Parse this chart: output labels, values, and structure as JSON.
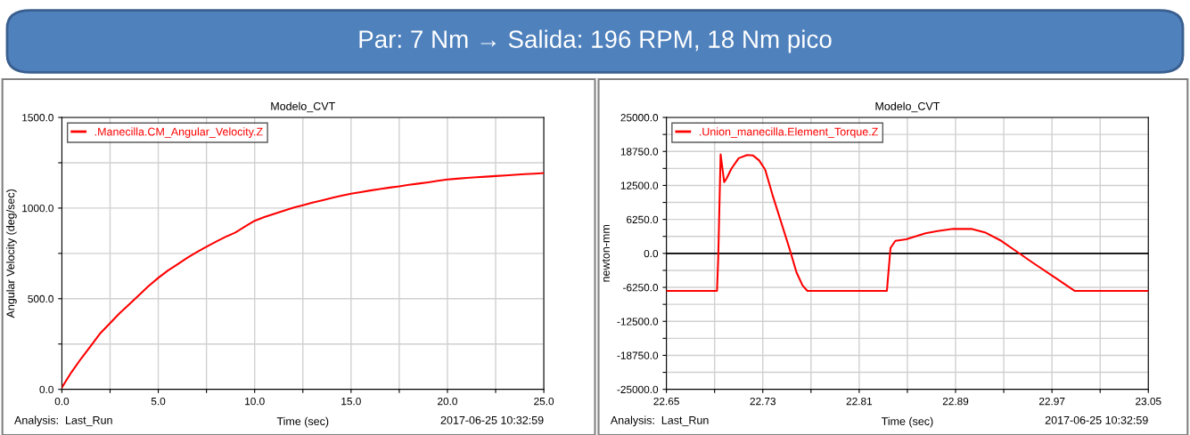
{
  "chart_data": [
    {
      "type": "other",
      "title": "Par: 7 Nm → Salida: 196 RPM, 18 Nm pico"
    },
    {
      "type": "line",
      "title": "Modelo_CVT",
      "xlabel": "Time (sec)",
      "ylabel": "Angular Velocity (deg/sec)",
      "x": [
        0,
        0.5,
        1,
        1.5,
        2,
        2.5,
        3,
        3.5,
        4,
        4.5,
        5,
        5.5,
        6,
        6.5,
        7,
        7.5,
        8,
        8.5,
        9,
        9.5,
        10,
        10.5,
        11,
        11.5,
        12,
        12.5,
        13,
        13.5,
        14,
        14.5,
        15,
        15.5,
        16,
        16.5,
        17,
        17.5,
        18,
        18.5,
        19,
        19.5,
        20,
        20.5,
        21,
        21.5,
        22,
        22.5,
        23,
        23.5,
        24,
        24.5,
        25
      ],
      "series": [
        {
          "name": ".Manecilla.CM_Angular_Velocity.Z",
          "color": "#ff0000",
          "values": [
            10,
            95,
            170,
            240,
            310,
            365,
            420,
            470,
            520,
            570,
            615,
            655,
            690,
            725,
            757,
            787,
            815,
            842,
            865,
            898,
            930,
            950,
            968,
            985,
            1002,
            1016,
            1030,
            1043,
            1056,
            1068,
            1079,
            1088,
            1097,
            1105,
            1113,
            1120,
            1128,
            1135,
            1142,
            1150,
            1158,
            1162,
            1166,
            1170,
            1173,
            1177,
            1180,
            1184,
            1187,
            1190,
            1193
          ]
        }
      ],
      "xlim": [
        0,
        25
      ],
      "xticks": [
        {
          "value": 0,
          "label": "0.0"
        },
        {
          "value": 2.5,
          "label": null
        },
        {
          "value": 5,
          "label": "5.0"
        },
        {
          "value": 7.5,
          "label": null
        },
        {
          "value": 10,
          "label": "10.0"
        },
        {
          "value": 12.5,
          "label": null
        },
        {
          "value": 15,
          "label": "15.0"
        },
        {
          "value": 17.5,
          "label": null
        },
        {
          "value": 20,
          "label": "20.0"
        },
        {
          "value": 22.5,
          "label": null
        },
        {
          "value": 25,
          "label": "25.0"
        }
      ],
      "ylim": [
        0,
        1500
      ],
      "yticks": [
        {
          "value": 0,
          "label": "0.0"
        },
        {
          "value": 250,
          "label": null
        },
        {
          "value": 500,
          "label": "500.0"
        },
        {
          "value": 750,
          "label": null
        },
        {
          "value": 1000,
          "label": "1000.0"
        },
        {
          "value": 1250,
          "label": null
        },
        {
          "value": 1500,
          "label": "1500.0"
        }
      ],
      "grid": true,
      "legend": "top left",
      "annotations": [
        "Analysis:  Last_Run",
        "2017-06-25 10:32:59"
      ]
    },
    {
      "type": "line",
      "title": "Modelo_CVT",
      "xlabel": "Time (sec)",
      "ylabel": "newton-mm",
      "x": [
        22.65,
        22.692,
        22.693,
        22.695,
        22.698,
        22.7,
        22.704,
        22.71,
        22.717,
        22.722,
        22.727,
        22.732,
        22.738,
        22.745,
        22.752,
        22.758,
        22.763,
        22.767,
        22.833,
        22.836,
        22.84,
        22.849,
        22.865,
        22.875,
        22.888,
        22.903,
        22.915,
        22.928,
        22.941,
        22.954,
        22.971,
        22.989,
        23.05
      ],
      "series": [
        {
          "name": ".Union_manecilla.Element_Torque.Z",
          "color": "#ff0000",
          "values": [
            -6900,
            -6900,
            -1000,
            18200,
            13100,
            13800,
            15600,
            17500,
            18100,
            18000,
            17100,
            15400,
            10800,
            5900,
            1000,
            -3500,
            -5900,
            -6900,
            -6900,
            1000,
            2300,
            2600,
            3700,
            4100,
            4500,
            4500,
            3800,
            2300,
            300,
            -1700,
            -4200,
            -6900,
            -6900
          ]
        }
      ],
      "xlim": [
        22.65,
        23.05
      ],
      "xticks": [
        22.65,
        {
          "value": 22.69,
          "label": null
        },
        22.73,
        {
          "value": 22.77,
          "label": null
        },
        22.81,
        {
          "value": 22.85,
          "label": null
        },
        22.89,
        {
          "value": 22.93,
          "label": null
        },
        22.97,
        {
          "value": 23.01,
          "label": null
        },
        23.05
      ],
      "ylim": [
        -25000,
        25000
      ],
      "yticks": [
        {
          "value": -25000,
          "label": "-25000.0"
        },
        {
          "value": -21875,
          "label": null
        },
        {
          "value": -18750,
          "label": "-18750.0"
        },
        {
          "value": -15625,
          "label": null
        },
        {
          "value": -12500,
          "label": "-12500.0"
        },
        {
          "value": -9375,
          "label": null
        },
        {
          "value": -6250,
          "label": "-6250.0"
        },
        {
          "value": -3125,
          "label": null
        },
        {
          "value": 0,
          "label": "0.0"
        },
        {
          "value": 3125,
          "label": null
        },
        {
          "value": 6250,
          "label": "6250.0"
        },
        {
          "value": 9375,
          "label": null
        },
        {
          "value": 12500,
          "label": "12500.0"
        },
        {
          "value": 15625,
          "label": null
        },
        {
          "value": 18750,
          "label": "18750.0"
        },
        {
          "value": 21875,
          "label": null
        },
        {
          "value": 25000,
          "label": "25000.0"
        }
      ],
      "ref_lines": [
        {
          "axis": "y",
          "value": 0,
          "color": "#000000"
        }
      ],
      "grid": true,
      "legend": "top left",
      "annotations": [
        "Analysis:  Last_Run",
        "2017-06-25 10:32:59"
      ]
    }
  ]
}
